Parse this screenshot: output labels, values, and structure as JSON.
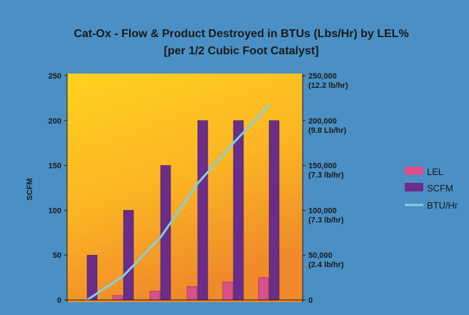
{
  "chart_data": {
    "type": "bar",
    "title_line1": "Cat-Ox - Flow & Product Destroyed in BTUs (Lbs/Hr) by LEL%",
    "title_line2": "[per 1/2 Cubic Foot Catalyst]",
    "ylabel": "SCFM",
    "xlabel": "",
    "ylim": [
      0,
      250
    ],
    "y_ticks": [
      "0",
      "50",
      "100",
      "150",
      "200",
      "250"
    ],
    "y2lim": [
      0,
      250000
    ],
    "y2_ticks": [
      {
        "value": 0,
        "line1": "0",
        "line2": ""
      },
      {
        "value": 50000,
        "line1": "50,000",
        "line2": "(2.4 lb/hr)"
      },
      {
        "value": 100000,
        "line1": "100,000",
        "line2": "(7.3 lb/hr)"
      },
      {
        "value": 150000,
        "line1": "150,000",
        "line2": "(7.3 lb/hr)"
      },
      {
        "value": 200000,
        "line1": "200,000",
        "line2": "(9.8 Lb/hr)"
      },
      {
        "value": 250000,
        "line1": "250,000",
        "line2": "(12.2 lb/hr)"
      }
    ],
    "categories": [
      "",
      "",
      "",
      "",
      "",
      ""
    ],
    "series": [
      {
        "name": "LEL",
        "kind": "bar",
        "axis": "left",
        "color": "#d9508a",
        "values": [
          0,
          5,
          10,
          15,
          20,
          25
        ]
      },
      {
        "name": "SCFM",
        "kind": "bar",
        "axis": "left",
        "color": "#6a2d8a",
        "values": [
          50,
          100,
          150,
          200,
          200,
          200
        ]
      },
      {
        "name": "BTU/Hr",
        "kind": "line",
        "axis": "right",
        "color": "#7fd0e4",
        "values": [
          0,
          27000,
          70000,
          130000,
          175000,
          217000
        ]
      }
    ],
    "legend_position": "right",
    "grid": false,
    "colors": {
      "background": "#4a90c4",
      "plot_top": "#ffd21f",
      "plot_bottom": "#f08a2a"
    }
  }
}
